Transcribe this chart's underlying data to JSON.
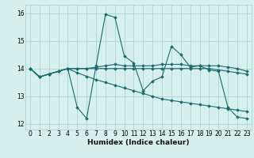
{
  "title": "",
  "xlabel": "Humidex (Indice chaleur)",
  "bg_color": "#d6f0ee",
  "grid_color": "#a8cece",
  "line_color": "#1a6b6b",
  "xlim": [
    -0.5,
    23.5
  ],
  "ylim": [
    11.8,
    16.3
  ],
  "yticks": [
    12,
    13,
    14,
    15,
    16
  ],
  "xticks": [
    0,
    1,
    2,
    3,
    4,
    5,
    6,
    7,
    8,
    9,
    10,
    11,
    12,
    13,
    14,
    15,
    16,
    17,
    18,
    19,
    20,
    21,
    22,
    23
  ],
  "series": [
    [
      14.0,
      13.7,
      13.8,
      13.9,
      14.0,
      12.6,
      12.2,
      14.1,
      15.95,
      15.85,
      14.45,
      14.2,
      13.2,
      13.55,
      13.7,
      14.8,
      14.5,
      14.05,
      14.1,
      13.95,
      13.9,
      12.6,
      12.25,
      12.2
    ],
    [
      14.0,
      13.7,
      13.8,
      13.9,
      14.0,
      13.85,
      13.72,
      13.6,
      13.5,
      13.4,
      13.3,
      13.2,
      13.1,
      13.0,
      12.9,
      12.85,
      12.8,
      12.75,
      12.7,
      12.65,
      12.6,
      12.55,
      12.5,
      12.45
    ],
    [
      14.0,
      13.7,
      13.8,
      13.9,
      14.0,
      14.0,
      14.0,
      14.0,
      14.0,
      14.0,
      14.0,
      14.0,
      14.0,
      14.0,
      14.0,
      14.0,
      14.0,
      14.0,
      14.0,
      14.0,
      13.95,
      13.9,
      13.85,
      13.8
    ],
    [
      14.0,
      13.7,
      13.8,
      13.9,
      14.0,
      14.0,
      14.0,
      14.05,
      14.1,
      14.15,
      14.1,
      14.1,
      14.1,
      14.1,
      14.15,
      14.15,
      14.15,
      14.1,
      14.1,
      14.1,
      14.1,
      14.05,
      14.0,
      13.9
    ]
  ]
}
